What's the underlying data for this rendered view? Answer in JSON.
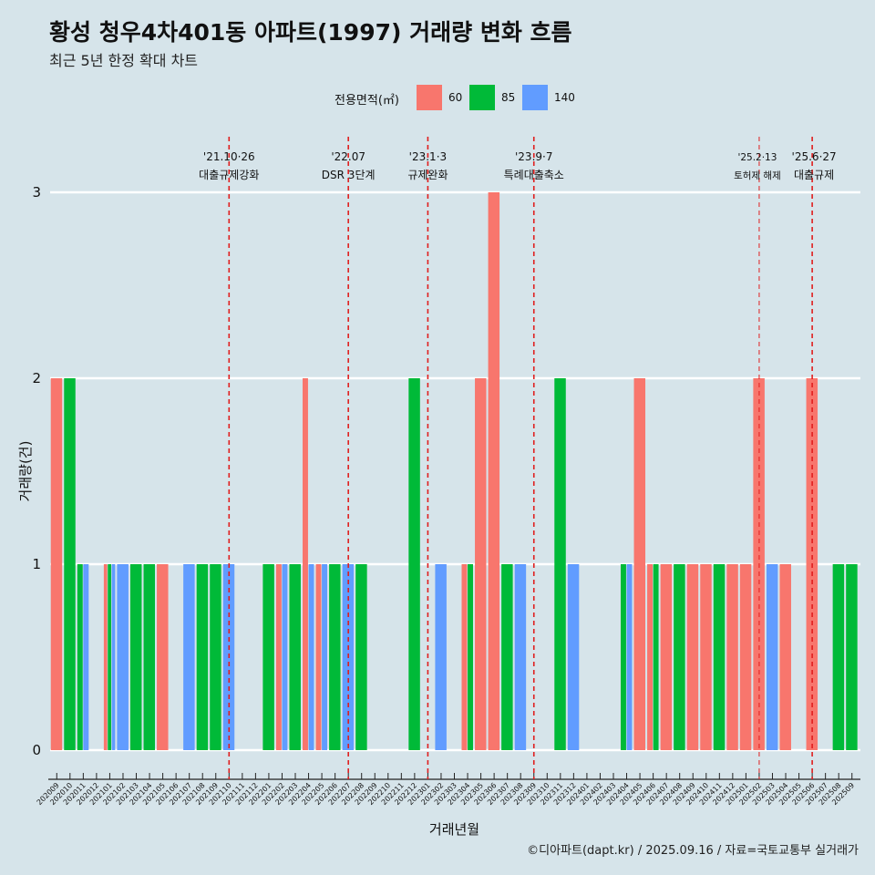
{
  "chart_data": {
    "type": "bar",
    "title": "황성 청우4차401동 아파트(1997) 거래량 변화 흐름",
    "subtitle": "최근 5년 한정 확대 차트",
    "xlabel": "거래년월",
    "ylabel": "거래량(건)",
    "ylim": [
      0,
      3
    ],
    "yticks": [
      0,
      1,
      2,
      3
    ],
    "grid": "horizontal",
    "legend_position": "top",
    "legend_title": "전용면적(㎡)",
    "caption": "©디아파트(dapt.kr) / 2025.09.16 / 자료=국토교통부 실거래가",
    "categories": [
      "202009",
      "202010",
      "202011",
      "202012",
      "202101",
      "202102",
      "202103",
      "202104",
      "202105",
      "202106",
      "202107",
      "202108",
      "202109",
      "202110",
      "202111",
      "202112",
      "202201",
      "202202",
      "202203",
      "202204",
      "202205",
      "202206",
      "202207",
      "202208",
      "202209",
      "202210",
      "202211",
      "202212",
      "202301",
      "202302",
      "202303",
      "202304",
      "202305",
      "202306",
      "202307",
      "202308",
      "202309",
      "202310",
      "202311",
      "202312",
      "202401",
      "202402",
      "202403",
      "202404",
      "202405",
      "202406",
      "202407",
      "202408",
      "202409",
      "202410",
      "202411",
      "202412",
      "202501",
      "202502",
      "202503",
      "202504",
      "202505",
      "202506",
      "202507",
      "202508",
      "202509"
    ],
    "series": [
      {
        "name": "60",
        "color": "#f8766d",
        "values": [
          2,
          0,
          0,
          0,
          1,
          0,
          0,
          0,
          1,
          0,
          0,
          0,
          0,
          0,
          0,
          0,
          0,
          1,
          0,
          2,
          1,
          0,
          0,
          0,
          0,
          0,
          0,
          0,
          0,
          0,
          0,
          1,
          2,
          3,
          0,
          0,
          0,
          0,
          0,
          0,
          0,
          0,
          0,
          0,
          2,
          1,
          1,
          0,
          1,
          1,
          0,
          1,
          1,
          2,
          0,
          1,
          0,
          2,
          0,
          0,
          0
        ]
      },
      {
        "name": "85",
        "color": "#00ba38",
        "values": [
          0,
          2,
          1,
          0,
          1,
          0,
          1,
          1,
          0,
          0,
          0,
          1,
          1,
          0,
          0,
          0,
          1,
          0,
          1,
          0,
          0,
          1,
          0,
          1,
          0,
          0,
          0,
          2,
          0,
          0,
          0,
          1,
          0,
          0,
          1,
          0,
          0,
          0,
          2,
          0,
          0,
          0,
          0,
          1,
          0,
          1,
          0,
          1,
          0,
          0,
          1,
          0,
          0,
          0,
          0,
          0,
          0,
          0,
          0,
          1,
          1
        ]
      },
      {
        "name": "140",
        "color": "#619cff",
        "values": [
          0,
          0,
          1,
          0,
          1,
          1,
          0,
          0,
          0,
          0,
          1,
          0,
          0,
          1,
          0,
          0,
          0,
          1,
          0,
          1,
          1,
          0,
          1,
          0,
          0,
          0,
          0,
          0,
          0,
          1,
          0,
          0,
          0,
          0,
          0,
          1,
          0,
          0,
          0,
          1,
          0,
          0,
          0,
          1,
          0,
          0,
          0,
          0,
          0,
          0,
          0,
          0,
          0,
          0,
          1,
          0,
          0,
          0,
          0,
          0,
          0
        ]
      }
    ],
    "annotations": [
      {
        "date": "'21.10·26",
        "label": "대출규제강화",
        "category": "202110"
      },
      {
        "date": "'22.07",
        "label": "DSR 3단계",
        "category": "202207"
      },
      {
        "date": "'23.1·3",
        "label": "규제완화",
        "category": "202301"
      },
      {
        "date": "'23.9·7",
        "label": "특례대출축소",
        "category": "202309"
      },
      {
        "date": "'25.2·13",
        "label": "토허제 해제",
        "category": "202502"
      },
      {
        "date": "'25.6·27",
        "label": "대출규제",
        "category": "202506"
      }
    ]
  }
}
